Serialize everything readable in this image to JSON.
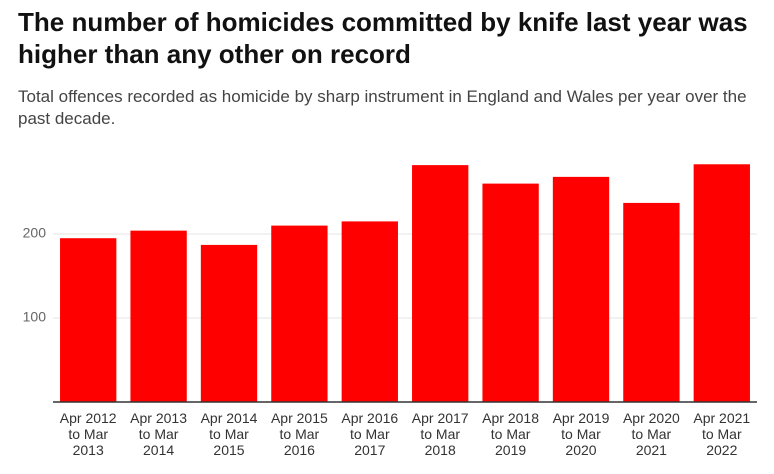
{
  "chart_data": {
    "type": "bar",
    "title": "The number of homicides committed by knife last year was higher than any other on record",
    "subtitle": "Total offences recorded as homicide by sharp instrument in England and Wales per year over the past decade.",
    "categories": [
      "Apr 2012 to Mar 2013",
      "Apr 2013 to Mar 2014",
      "Apr 2014 to Mar 2015",
      "Apr 2015 to Mar 2016",
      "Apr 2016 to Mar 2017",
      "Apr 2017 to Mar 2018",
      "Apr 2018 to Mar 2019",
      "Apr 2019 to Mar 2020",
      "Apr 2020 to Mar 2021",
      "Apr 2021 to Mar 2022"
    ],
    "values": [
      195,
      204,
      187,
      210,
      215,
      282,
      260,
      268,
      237,
      283
    ],
    "color": "#ff0000",
    "ylim": [
      0,
      300
    ],
    "yticks": [
      100,
      200
    ],
    "grid": true
  }
}
